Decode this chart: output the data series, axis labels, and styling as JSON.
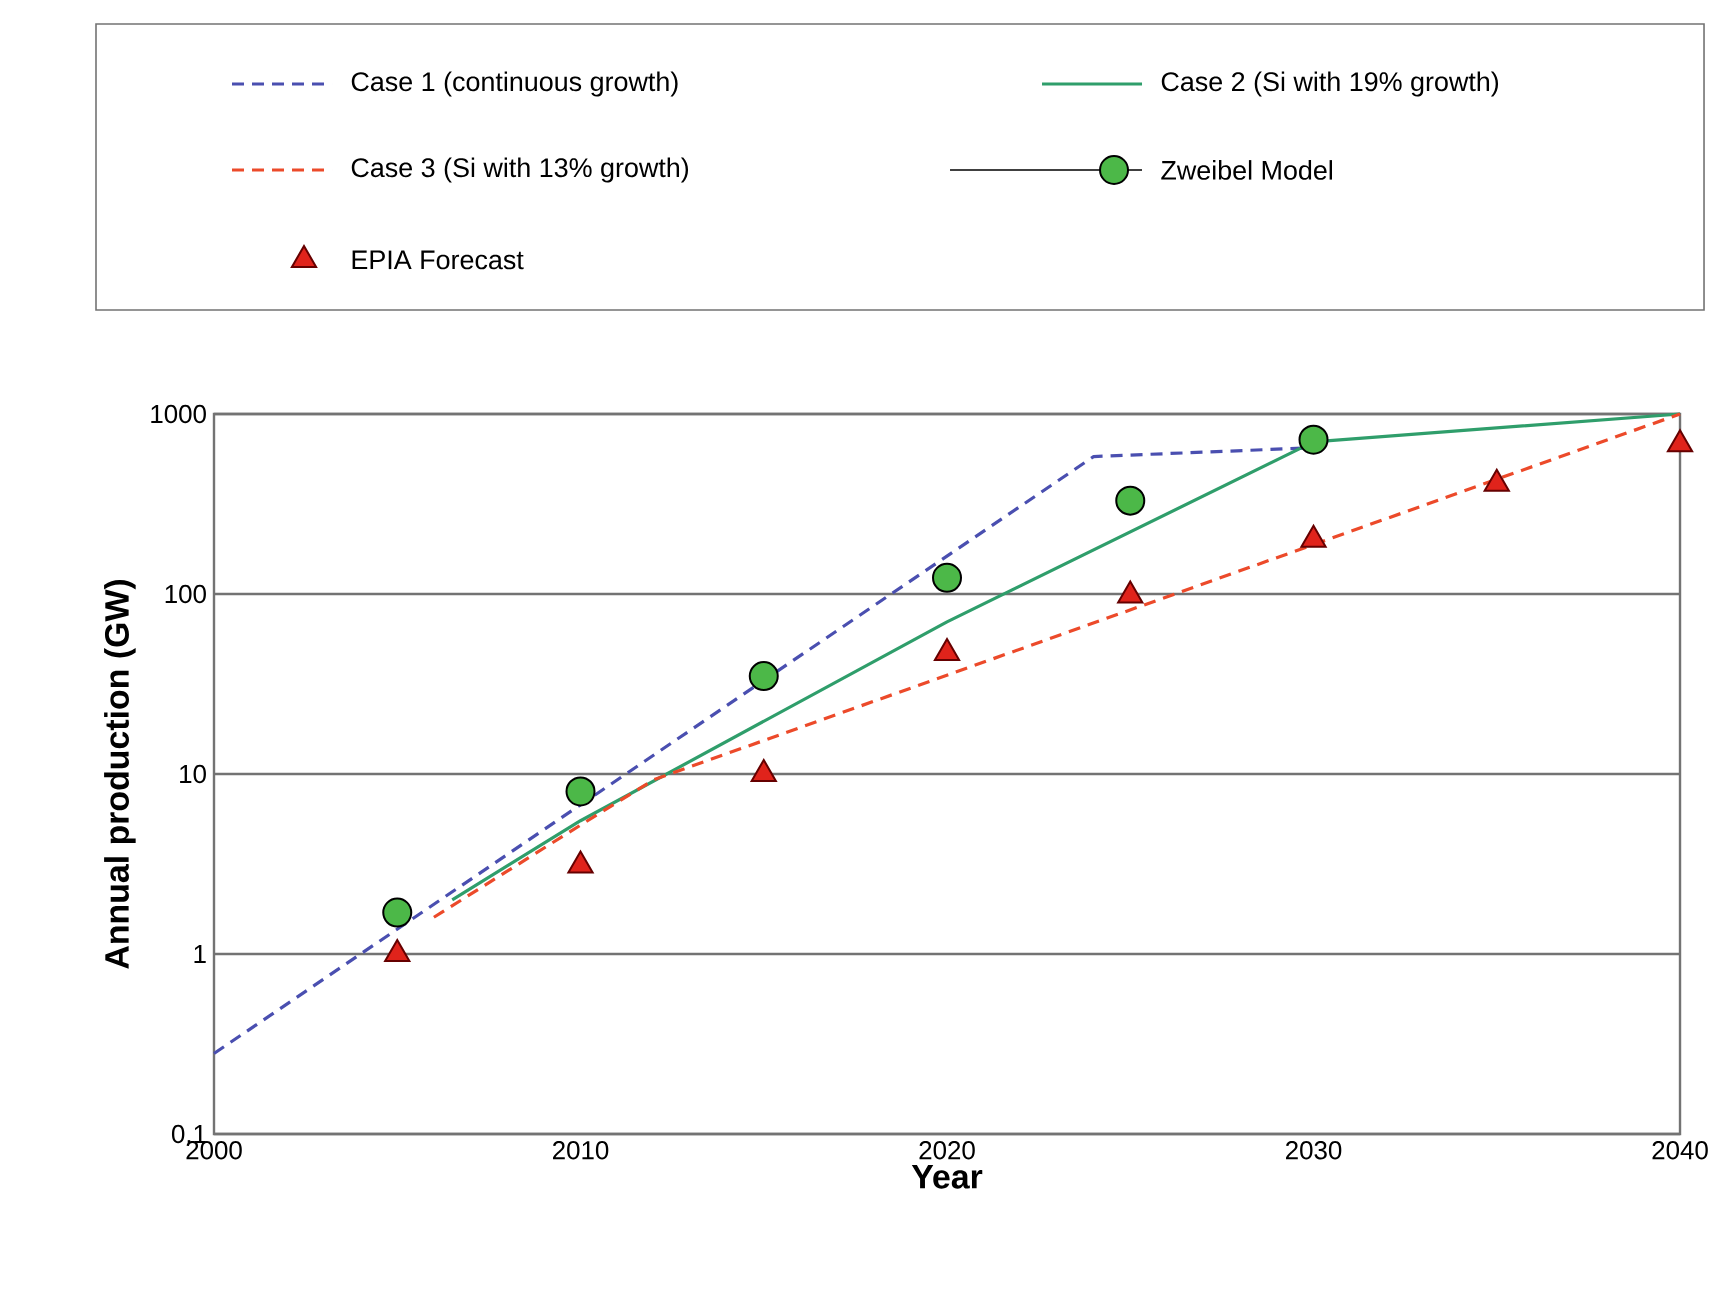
{
  "chart_data": {
    "type": "line",
    "xlabel": "Year",
    "ylabel": "Annual production (GW)",
    "log": "y",
    "grid": "y",
    "legend": "top",
    "xlim": [
      2000,
      2040
    ],
    "xticks": [
      2000,
      2010,
      2020,
      2030,
      2040
    ],
    "ylim": [
      0.1,
      1000
    ],
    "yticks": [
      0.1,
      1,
      10,
      100,
      1000
    ],
    "series": [
      {
        "name": "Case 1 (continuous growth)",
        "line_style": "dashed",
        "color": "#4a4fb0",
        "x": [
          2000,
          2024,
          2030
        ],
        "values": [
          0.28,
          580,
          650
        ]
      },
      {
        "name": "Case 2 (Si with 19% growth)",
        "line_style": "solid",
        "color": "#2f9e6b",
        "x": [
          2006.5,
          2010,
          2020,
          2030,
          2040
        ],
        "values": [
          2,
          5.5,
          70,
          700,
          1000
        ]
      },
      {
        "name": "Case 3 (Si with 13% growth)",
        "line_style": "dashed",
        "color": "#ec4a2a",
        "x": [
          2006,
          2010,
          2012,
          2040
        ],
        "values": [
          1.6,
          5.2,
          9.3,
          1000
        ]
      },
      {
        "name": "Zweibel  Model",
        "type": "scatter",
        "marker": "circle",
        "color": "#4cb848",
        "x": [
          2005,
          2010,
          2015,
          2020,
          2025,
          2030
        ],
        "values": [
          1.7,
          8,
          35,
          123,
          330,
          720
        ]
      },
      {
        "name": "EPIA Forecast",
        "type": "scatter",
        "marker": "triangle",
        "color": "#e0231b",
        "x": [
          2005,
          2010,
          2015,
          2020,
          2025,
          2030,
          2035,
          2040
        ],
        "values": [
          1.0,
          3.1,
          10,
          47,
          98,
          200,
          410,
          680
        ]
      }
    ]
  }
}
